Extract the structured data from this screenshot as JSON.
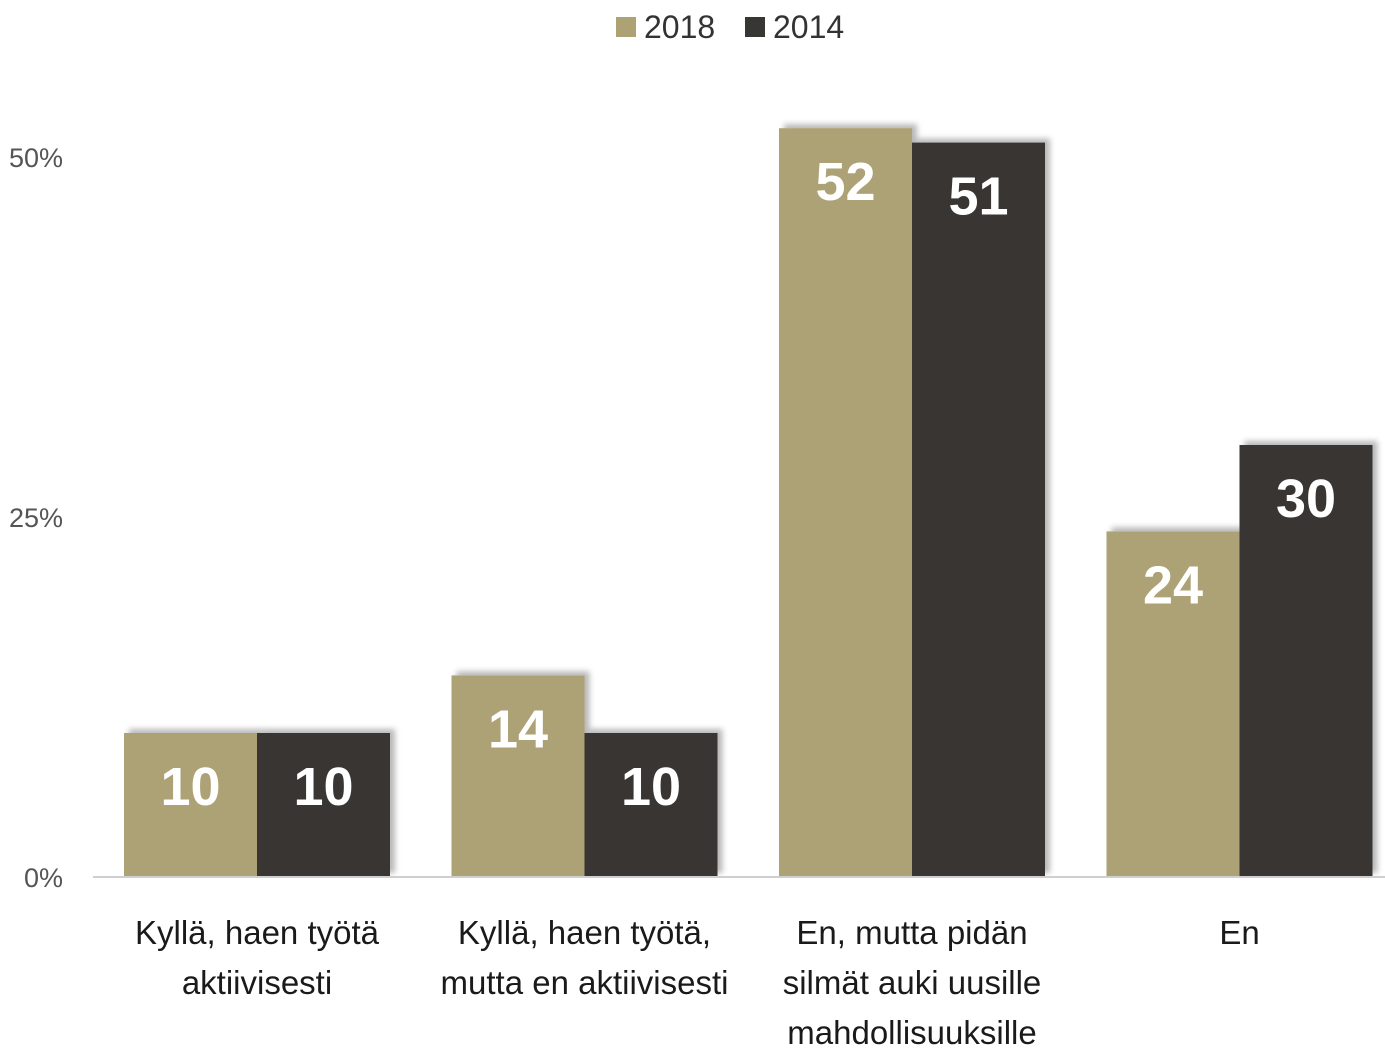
{
  "chart_data": {
    "type": "bar",
    "title": "",
    "xlabel": "",
    "ylabel": "",
    "ylim": [
      0,
      60
    ],
    "yticks": [
      {
        "value": 0,
        "label": "0%"
      },
      {
        "value": 25,
        "label": "25%"
      },
      {
        "value": 50,
        "label": "50%"
      }
    ],
    "grid": false,
    "legend_position": "top-center",
    "categories": [
      [
        "Kyllä, haen työtä",
        "aktiivisesti"
      ],
      [
        "Kyllä, haen työtä,",
        "mutta en aktiivisesti"
      ],
      [
        "En, mutta pidän",
        "silmät auki uusille",
        "mahdollisuuksille"
      ],
      [
        "En"
      ]
    ],
    "series": [
      {
        "name": "2018",
        "color": "#ada274",
        "values": [
          10,
          14,
          52,
          24
        ]
      },
      {
        "name": "2014",
        "color": "#383633",
        "values": [
          10,
          10,
          51,
          30
        ]
      }
    ],
    "data_labels": [
      [
        "10",
        "14",
        "52",
        "24"
      ],
      [
        "10",
        "10",
        "51",
        "30"
      ]
    ],
    "colors": {
      "axis": "#cfcfcf",
      "tick_text": "#555555",
      "category_text": "#1a1a1a",
      "data_label_text": "#ffffff",
      "legend_text": "#333333"
    }
  }
}
